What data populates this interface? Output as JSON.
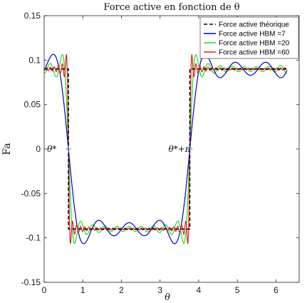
{
  "chart_data": {
    "type": "line",
    "title": "Force active en fonction de θ",
    "xlabel": "θ",
    "ylabel": "Fa",
    "xlim": [
      0,
      6.6
    ],
    "ylim": [
      -0.15,
      0.15
    ],
    "xticks": [
      0,
      1,
      2,
      3,
      4,
      5,
      6
    ],
    "yticks": [
      0.15,
      0.1,
      0.05,
      0,
      -0.05,
      -0.1,
      -0.15
    ],
    "ytick_labels": [
      "0.15",
      "0.1",
      "0.05",
      "0",
      "-0.05",
      "-0.1",
      "-0.15"
    ],
    "grid": false,
    "legend": "top-right",
    "x_range": [
      0,
      6.2832
    ],
    "transitions": [
      0.6283,
      3.7699
    ],
    "amplitude": 0.09,
    "series": [
      {
        "name": "Force active théorique",
        "color": "#000000",
        "style": "dashed",
        "harmonics": null
      },
      {
        "name": "Force active HBM =7",
        "color": "#0000cc",
        "style": "solid",
        "harmonics": 7
      },
      {
        "name": "Force active HBM =20",
        "color": "#22dd22",
        "style": "solid",
        "harmonics": 20
      },
      {
        "name": "Force active HBM =60",
        "color": "#e02020",
        "style": "solid",
        "harmonics": 60
      }
    ],
    "markers": [
      {
        "x": 0.6283,
        "y": 0,
        "label": "θ*"
      },
      {
        "x": 3.7699,
        "y": 0,
        "label": "θ*+π"
      }
    ]
  }
}
